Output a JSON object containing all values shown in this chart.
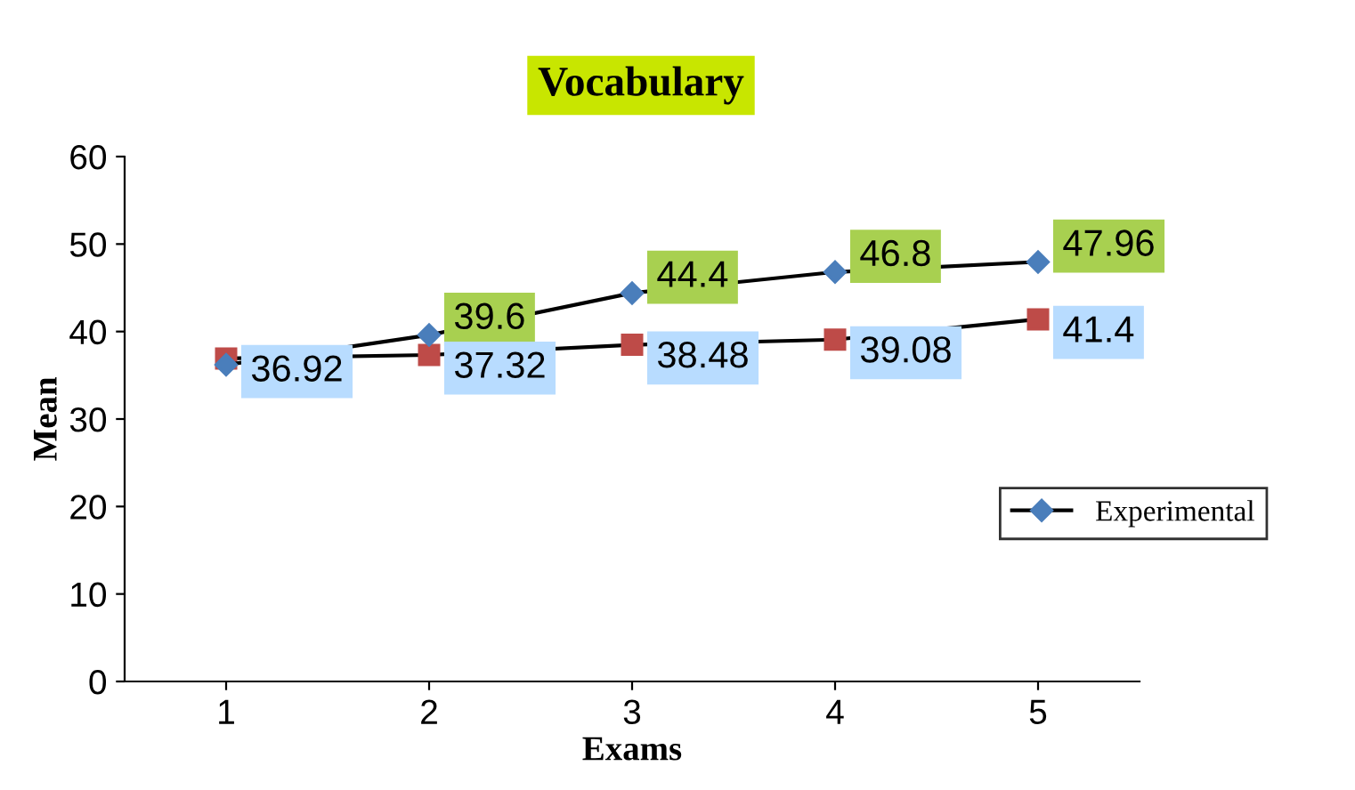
{
  "chart_data": {
    "type": "line",
    "title": "Vocabulary",
    "xlabel": "Exams",
    "ylabel": "Mean",
    "categories": [
      "1",
      "2",
      "3",
      "4",
      "5"
    ],
    "series": [
      {
        "name": "Experimental",
        "color": "#4a7ebb",
        "marker": "diamond",
        "values": [
          36.2,
          39.6,
          44.4,
          46.8,
          47.96
        ],
        "value_labels": [
          null,
          "39.6",
          "44.4",
          "46.8",
          "47.96"
        ]
      },
      {
        "color": "#be4b48",
        "marker": "square",
        "values": [
          36.92,
          37.32,
          38.48,
          39.08,
          41.4
        ],
        "value_labels": [
          "36.92",
          "37.32",
          "38.48",
          "39.08",
          "41.4"
        ]
      }
    ],
    "ylim": [
      0,
      60
    ],
    "yticks": [
      0,
      10,
      20,
      30,
      40,
      50,
      60
    ],
    "grid": false,
    "legend": "right",
    "line_style": "solid"
  }
}
